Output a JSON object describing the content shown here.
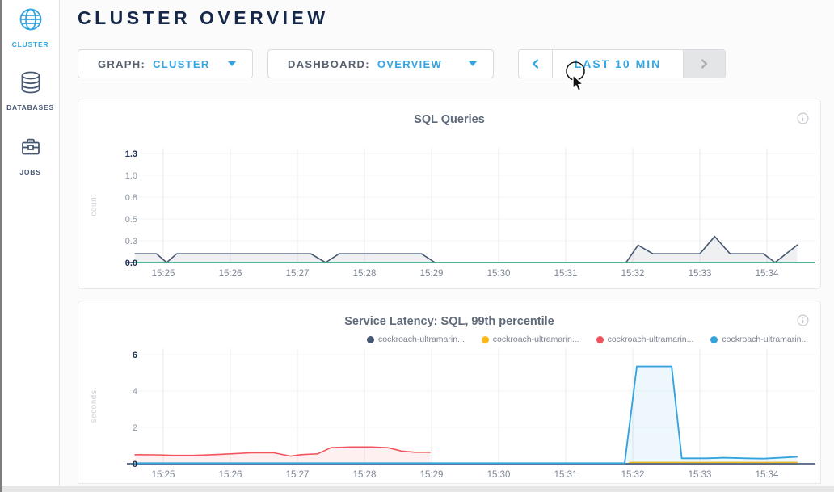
{
  "page": {
    "title": "CLUSTER OVERVIEW"
  },
  "sidebar": {
    "items": [
      {
        "label": "CLUSTER",
        "icon": "globe-icon",
        "active": true
      },
      {
        "label": "DATABASES",
        "icon": "database-icon",
        "active": false
      },
      {
        "label": "JOBS",
        "icon": "briefcase-icon",
        "active": false
      }
    ]
  },
  "controls": {
    "graph": {
      "label": "GRAPH:",
      "value": "CLUSTER"
    },
    "dashboard": {
      "label": "DASHBOARD:",
      "value": "OVERVIEW"
    },
    "timewindow": {
      "label": "LAST 10 MIN"
    }
  },
  "colors": {
    "accent_blue": "#33a5e1",
    "dark_navy": "#152849",
    "slate": "#475872",
    "green": "#37c28e",
    "red": "#f2545b",
    "yellow": "#fdb913",
    "light_blue": "#35a4dd"
  },
  "chart_data": [
    {
      "type": "line",
      "title": "SQL Queries",
      "ylabel": "count",
      "xlabel": "",
      "ylim": [
        0,
        1.25
      ],
      "xlim": [
        24.58,
        34.72
      ],
      "grid": true,
      "legend_position": "none",
      "xticks": [
        {
          "t": 25,
          "label": "15:25"
        },
        {
          "t": 26,
          "label": "15:26"
        },
        {
          "t": 27,
          "label": "15:27"
        },
        {
          "t": 28,
          "label": "15:28"
        },
        {
          "t": 29,
          "label": "15:29"
        },
        {
          "t": 30,
          "label": "15:30"
        },
        {
          "t": 31,
          "label": "15:31"
        },
        {
          "t": 32,
          "label": "15:32"
        },
        {
          "t": 33,
          "label": "15:33"
        },
        {
          "t": 34,
          "label": "15:34"
        }
      ],
      "yticks": [
        {
          "v": 0,
          "label": "0.0"
        },
        {
          "v": 0.25,
          "label": "0.3"
        },
        {
          "v": 0.5,
          "label": "0.5"
        },
        {
          "v": 0.75,
          "label": "0.8"
        },
        {
          "v": 1.0,
          "label": "1.0"
        },
        {
          "v": 1.25,
          "label": "1.3"
        }
      ],
      "series": [
        {
          "name": "queries-dark-slate",
          "color": "#475872",
          "fill": "rgba(71,88,114,0.09)",
          "width": 1.6,
          "segments": [
            [
              [
                24.58,
                0.1
              ],
              [
                24.9,
                0.1
              ],
              [
                25.05,
                0
              ],
              [
                25.2,
                0.1
              ],
              [
                27.2,
                0.1
              ],
              [
                27.42,
                0
              ],
              [
                27.62,
                0.1
              ],
              [
                28.85,
                0.1
              ],
              [
                29.05,
                0
              ]
            ],
            [
              [
                31.9,
                0
              ],
              [
                32.08,
                0.2
              ],
              [
                32.3,
                0.1
              ],
              [
                33.0,
                0.1
              ],
              [
                33.22,
                0.3
              ],
              [
                33.45,
                0.1
              ],
              [
                33.95,
                0.1
              ],
              [
                34.12,
                0
              ],
              [
                34.45,
                0.2
              ]
            ]
          ]
        },
        {
          "name": "queries-green-zero",
          "color": "#37c28e",
          "fill": null,
          "width": 1.4,
          "segments": [
            [
              [
                24.58,
                0
              ],
              [
                34.7,
                0
              ]
            ]
          ]
        }
      ]
    },
    {
      "type": "line",
      "title": "Service Latency: SQL, 99th percentile",
      "ylabel": "seconds",
      "xlabel": "",
      "ylim": [
        0,
        6
      ],
      "xlim": [
        24.58,
        34.5
      ],
      "grid": true,
      "legend_position": "top-center",
      "legend": [
        {
          "label": "cockroach-ultramarin...",
          "color": "#475872"
        },
        {
          "label": "cockroach-ultramarin...",
          "color": "#fdb913"
        },
        {
          "label": "cockroach-ultramarin...",
          "color": "#f2545b"
        },
        {
          "label": "cockroach-ultramarin...",
          "color": "#35a4dd"
        }
      ],
      "xticks": [
        {
          "t": 25,
          "label": "15:25"
        },
        {
          "t": 26,
          "label": "15:26"
        },
        {
          "t": 27,
          "label": "15:27"
        },
        {
          "t": 28,
          "label": "15:28"
        },
        {
          "t": 29,
          "label": "15:29"
        },
        {
          "t": 30,
          "label": "15:30"
        },
        {
          "t": 31,
          "label": "15:31"
        },
        {
          "t": 32,
          "label": "15:32"
        },
        {
          "t": 33,
          "label": "15:33"
        },
        {
          "t": 34,
          "label": "15:34"
        }
      ],
      "yticks": [
        {
          "v": 0,
          "label": "0"
        },
        {
          "v": 2,
          "label": "2"
        },
        {
          "v": 4,
          "label": "4"
        },
        {
          "v": 6,
          "label": "6"
        }
      ],
      "series": [
        {
          "name": "latency-dark-slate",
          "color": "#475872",
          "fill": null,
          "width": 1.4,
          "segments": [
            [
              [
                24.58,
                0
              ],
              [
                34.45,
                0
              ]
            ]
          ]
        },
        {
          "name": "latency-red",
          "color": "#f2545b",
          "fill": "rgba(242,84,91,0.09)",
          "width": 1.6,
          "segments": [
            [
              [
                24.58,
                0.5
              ],
              [
                24.9,
                0.49
              ],
              [
                25.15,
                0.46
              ],
              [
                25.45,
                0.46
              ],
              [
                25.75,
                0.5
              ],
              [
                26.0,
                0.54
              ],
              [
                26.3,
                0.6
              ],
              [
                26.65,
                0.6
              ],
              [
                26.9,
                0.42
              ],
              [
                27.05,
                0.5
              ],
              [
                27.3,
                0.54
              ],
              [
                27.5,
                0.88
              ],
              [
                27.8,
                0.92
              ],
              [
                28.1,
                0.92
              ],
              [
                28.35,
                0.88
              ],
              [
                28.55,
                0.7
              ],
              [
                28.75,
                0.63
              ],
              [
                28.98,
                0.63
              ]
            ]
          ]
        },
        {
          "name": "latency-yellow",
          "color": "#fdb913",
          "fill": null,
          "width": 1.5,
          "segments": [
            [
              [
                31.95,
                0.07
              ],
              [
                34.45,
                0.07
              ]
            ]
          ]
        },
        {
          "name": "latency-light-blue",
          "color": "#35a4dd",
          "fill": "rgba(53,164,221,0.09)",
          "width": 1.9,
          "segments": [
            [
              [
                24.58,
                0.03
              ],
              [
                31.88,
                0.03
              ],
              [
                32.06,
                5.35
              ],
              [
                32.58,
                5.35
              ],
              [
                32.73,
                0.3
              ],
              [
                33.1,
                0.3
              ],
              [
                33.35,
                0.33
              ],
              [
                33.7,
                0.3
              ],
              [
                33.95,
                0.28
              ],
              [
                34.15,
                0.32
              ],
              [
                34.45,
                0.38
              ]
            ]
          ]
        }
      ]
    }
  ]
}
